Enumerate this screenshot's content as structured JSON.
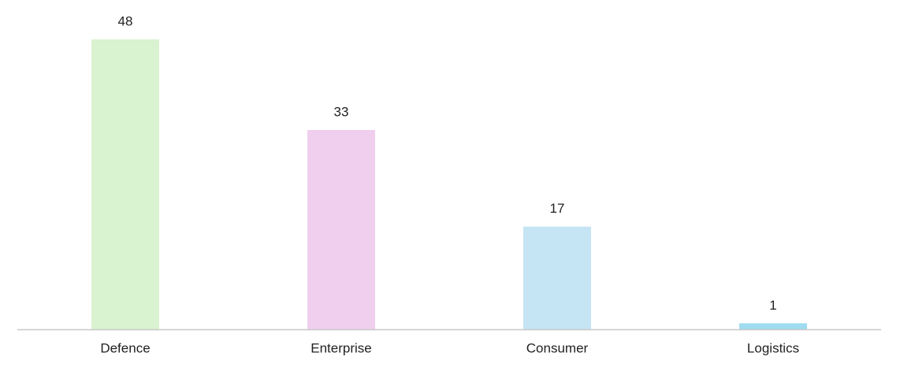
{
  "chart_data": {
    "type": "bar",
    "categories": [
      "Defence",
      "Enterprise",
      "Consumer",
      "Logistics"
    ],
    "values": [
      48,
      33,
      17,
      1
    ],
    "colors": [
      "#d9f2d0",
      "#f0cfee",
      "#c5e4f4",
      "#9fdcf0"
    ]
  }
}
